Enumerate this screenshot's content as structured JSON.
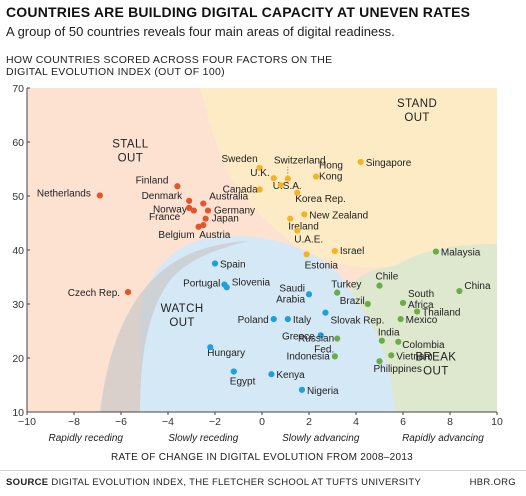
{
  "title": "COUNTRIES ARE BUILDING DIGITAL CAPACITY AT UNEVEN RATES",
  "subtitle": "A group of 50 countries reveals four main areas of digital readiness.",
  "y_axis_title": "HOW COUNTRIES SCORED ACROSS FOUR FACTORS ON THE DIGITAL EVOLUTION INDEX (OUT OF 100)",
  "x_axis_title": "RATE OF CHANGE IN DIGITAL EVOLUTION FROM 2008–2013",
  "source_label": "SOURCE",
  "source_text": "DIGITAL EVOLUTION INDEX, THE FLETCHER SCHOOL AT TUFTS UNIVERSITY",
  "brand": "HBR.ORG",
  "x_descriptors": [
    {
      "text": "Rapidly receding",
      "x": -7.5
    },
    {
      "text": "Slowly receding",
      "x": -2.5
    },
    {
      "text": "Slowly advancing",
      "x": 2.5
    },
    {
      "text": "Rapidly advancing",
      "x": 7.7
    }
  ],
  "zones": [
    {
      "name": "STALL OUT",
      "lines": [
        "STALL",
        "OUT"
      ],
      "color": "#fde1d1",
      "dot_color": "#e8542a"
    },
    {
      "name": "STAND OUT",
      "lines": [
        "STAND",
        "OUT"
      ],
      "color": "#fcebc4",
      "dot_color": "#f5b323"
    },
    {
      "name": "WATCH OUT",
      "lines": [
        "WATCH",
        "OUT"
      ],
      "color": "#d5e8f6",
      "dot_color": "#1ea0db"
    },
    {
      "name": "BREAK OUT",
      "lines": [
        "BREAK",
        "OUT"
      ],
      "color": "#dde8cf",
      "dot_color": "#6aac46"
    }
  ],
  "chart_data": {
    "type": "scatter",
    "title": "COUNTRIES ARE BUILDING DIGITAL CAPACITY AT UNEVEN RATES",
    "xlabel": "RATE OF CHANGE IN DIGITAL EVOLUTION FROM 2008–2013",
    "ylabel": "HOW COUNTRIES SCORED ACROSS FOUR FACTORS ON THE DIGITAL EVOLUTION INDEX (OUT OF 100)",
    "xlim": [
      -10,
      10
    ],
    "ylim": [
      10,
      70
    ],
    "x_ticks": [
      -10,
      -8,
      -6,
      -4,
      -2,
      0,
      2,
      4,
      6,
      8,
      10
    ],
    "y_ticks": [
      10,
      20,
      30,
      40,
      50,
      60,
      70
    ],
    "grid": false,
    "series": [
      {
        "name": "STALL OUT",
        "color": "#e8542a",
        "points": [
          {
            "label": "Netherlands",
            "x": -6.9,
            "y": 50.1
          },
          {
            "label": "Finland",
            "x": -3.6,
            "y": 51.8
          },
          {
            "label": "Denmark",
            "x": -3.1,
            "y": 49.1
          },
          {
            "label": "Norway",
            "x": -2.9,
            "y": 47.3
          },
          {
            "label": "France",
            "x": -3.1,
            "y": 47.8
          },
          {
            "label": "Belgium",
            "x": -2.7,
            "y": 44.3
          },
          {
            "label": "Australia",
            "x": -2.5,
            "y": 48.6
          },
          {
            "label": "Germany",
            "x": -2.3,
            "y": 47.3
          },
          {
            "label": "Japan",
            "x": -2.4,
            "y": 45.8
          },
          {
            "label": "Austria",
            "x": -2.5,
            "y": 44.6
          },
          {
            "label": "Czech Rep.",
            "x": -5.7,
            "y": 32.2
          }
        ]
      },
      {
        "name": "STAND OUT",
        "color": "#f5b323",
        "points": [
          {
            "label": "Sweden",
            "x": -0.1,
            "y": 55.2
          },
          {
            "label": "U.K.",
            "x": 0.5,
            "y": 53.3
          },
          {
            "label": "Canada",
            "x": -0.1,
            "y": 51.2
          },
          {
            "label": "Switzerland",
            "x": 1.1,
            "y": 53.2
          },
          {
            "label": "U.S.A.",
            "x": 0.8,
            "y": 52.0
          },
          {
            "label": "Hong Kong",
            "x": 2.3,
            "y": 53.6
          },
          {
            "label": "Singapore",
            "x": 4.2,
            "y": 56.3
          },
          {
            "label": "Korea Rep.",
            "x": 1.5,
            "y": 50.6
          },
          {
            "label": "New Zealand",
            "x": 1.8,
            "y": 46.6
          },
          {
            "label": "Ireland",
            "x": 1.2,
            "y": 45.8
          },
          {
            "label": "U.A.E.",
            "x": 1.5,
            "y": 43.6
          },
          {
            "label": "Israel",
            "x": 3.1,
            "y": 39.8
          },
          {
            "label": "Estonia",
            "x": 1.9,
            "y": 39.2
          }
        ]
      },
      {
        "name": "WATCH OUT",
        "color": "#1ea0db",
        "points": [
          {
            "label": "Spain",
            "x": -2.0,
            "y": 37.5
          },
          {
            "label": "Portugal",
            "x": -1.6,
            "y": 33.6
          },
          {
            "label": "Slovenia",
            "x": -1.5,
            "y": 33.1
          },
          {
            "label": "Saudi Arabia",
            "x": 2.0,
            "y": 31.8
          },
          {
            "label": "Poland",
            "x": 0.5,
            "y": 27.2
          },
          {
            "label": "Italy",
            "x": 1.1,
            "y": 27.2
          },
          {
            "label": "Slovak Rep.",
            "x": 2.7,
            "y": 28.4
          },
          {
            "label": "Hungary",
            "x": -2.2,
            "y": 22.0
          },
          {
            "label": "Greece",
            "x": 2.5,
            "y": 24.2
          },
          {
            "label": "Egypt",
            "x": -1.2,
            "y": 17.5
          },
          {
            "label": "Kenya",
            "x": 0.4,
            "y": 17.0
          },
          {
            "label": "Nigeria",
            "x": 1.7,
            "y": 14.1
          }
        ]
      },
      {
        "name": "BREAK OUT",
        "color": "#6aac46",
        "points": [
          {
            "label": "Turkey",
            "x": 3.2,
            "y": 32.1
          },
          {
            "label": "Brazil",
            "x": 4.5,
            "y": 30.0
          },
          {
            "label": "Chile",
            "x": 5.0,
            "y": 33.4
          },
          {
            "label": "Russian Fed.",
            "x": 3.2,
            "y": 23.6
          },
          {
            "label": "Indonesia",
            "x": 3.1,
            "y": 20.3
          },
          {
            "label": "India",
            "x": 5.1,
            "y": 23.2
          },
          {
            "label": "Colombia",
            "x": 5.8,
            "y": 23.0
          },
          {
            "label": "Philippines",
            "x": 5.0,
            "y": 19.4
          },
          {
            "label": "Vietnam",
            "x": 5.5,
            "y": 20.5
          },
          {
            "label": "Mexico",
            "x": 5.9,
            "y": 27.2
          },
          {
            "label": "South Africa",
            "x": 6.0,
            "y": 30.2
          },
          {
            "label": "Thailand",
            "x": 6.6,
            "y": 28.6
          },
          {
            "label": "Malaysia",
            "x": 7.4,
            "y": 39.7
          },
          {
            "label": "China",
            "x": 8.4,
            "y": 32.4
          }
        ]
      }
    ]
  }
}
